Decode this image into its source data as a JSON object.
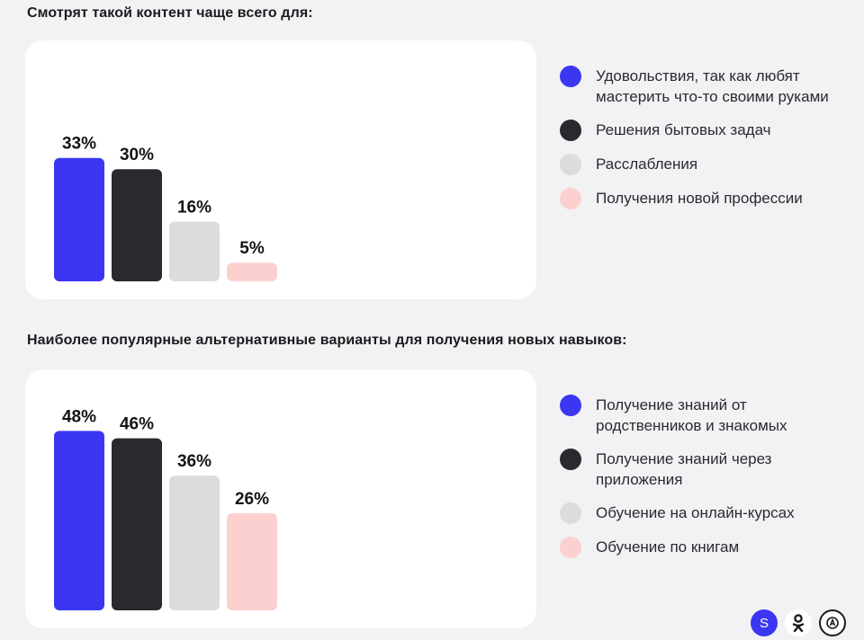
{
  "chart_data": [
    {
      "type": "bar",
      "title": "Смотрят такой контент чаще всего для:",
      "categories": [
        "Удовольствия, так как любят мастерить что-то своими руками",
        "Решения бытовых задач",
        "Расслабления",
        "Получения новой профессии"
      ],
      "values": [
        33,
        30,
        16,
        5
      ],
      "value_labels": [
        "33%",
        "30%",
        "16%",
        "5%"
      ],
      "colors": [
        "#3a36f2",
        "#2a2a2e",
        "#dcdcdc",
        "#fbd0cf"
      ],
      "ylim": [
        0,
        50
      ],
      "legend_position": "right",
      "grid": false
    },
    {
      "type": "bar",
      "title": "Наиболее популярные альтернативные варианты для получения новых навыков:",
      "categories": [
        "Получение знаний от родственников и знакомых",
        "Получение знаний через приложения",
        "Обучение на онлайн-курсах",
        "Обучение по книгам"
      ],
      "values": [
        48,
        46,
        36,
        26
      ],
      "value_labels": [
        "48%",
        "46%",
        "36%",
        "26%"
      ],
      "colors": [
        "#3a36f2",
        "#2a2a2e",
        "#dcdcdc",
        "#fbd0cf"
      ],
      "ylim": [
        0,
        50
      ],
      "legend_position": "right",
      "grid": false
    }
  ],
  "footer": {
    "icons": [
      "s-logo-icon",
      "ok-logo-icon",
      "a-logo-icon"
    ],
    "s_label": "S"
  }
}
